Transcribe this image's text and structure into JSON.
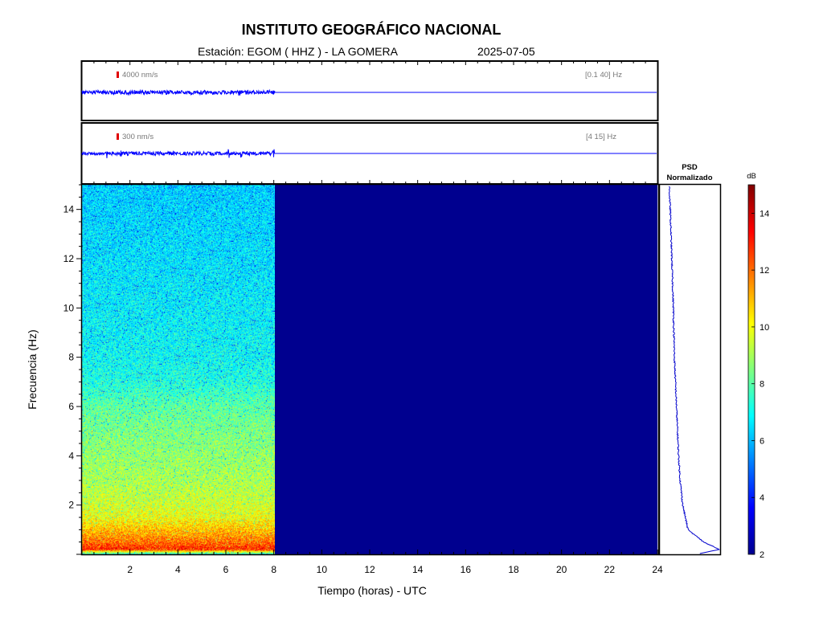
{
  "header": {
    "title": "INSTITUTO GEOGRÁFICO NACIONAL",
    "station": "Estación:  EGOM ( HHZ ) - LA GOMERA",
    "date": "2025-07-05"
  },
  "traces": [
    {
      "scale_label": "4000 nm/s",
      "band_label": "[0.1 40] Hz"
    },
    {
      "scale_label": "300 nm/s",
      "band_label": "[4 15] Hz"
    }
  ],
  "psd_panel": {
    "label_line1": "PSD",
    "label_line2": "Normalizado"
  },
  "colors": {
    "trace": "#0000ff",
    "empty_spectrogram": "#00008f",
    "scale_marker": "#e00000"
  },
  "chart_data": {
    "type": "heatmap",
    "xlabel": "Tiempo (horas) - UTC",
    "ylabel": "Frecuencia  (Hz)",
    "xlim": [
      0,
      24
    ],
    "ylim": [
      0,
      15
    ],
    "xticks": [
      2,
      4,
      6,
      8,
      10,
      12,
      14,
      16,
      18,
      20,
      22,
      24
    ],
    "yticks": [
      2,
      4,
      6,
      8,
      10,
      12,
      14
    ],
    "data_end_hour": 8.05,
    "colorbar": {
      "label": "dB",
      "range": [
        2,
        15
      ],
      "ticks": [
        2,
        4,
        6,
        8,
        10,
        12,
        14
      ],
      "colormap": "jet"
    },
    "spectrogram_db_by_frequency": {
      "frequency_hz": [
        0,
        0.2,
        0.5,
        1,
        1.5,
        2,
        3,
        4,
        5,
        6,
        7,
        8,
        10,
        12,
        14,
        15
      ],
      "level_db": [
        7,
        13,
        12,
        11,
        10,
        9.6,
        9.1,
        8.8,
        8.5,
        8.1,
        7.3,
        7,
        6.8,
        6.6,
        6.4,
        6.3
      ]
    },
    "psd_normalized": {
      "frequency_hz": [
        0,
        0.2,
        0.5,
        1,
        2,
        3,
        4,
        5,
        6,
        8,
        10,
        12,
        14,
        15
      ],
      "value": [
        0.55,
        1.0,
        0.7,
        0.4,
        0.3,
        0.25,
        0.22,
        0.2,
        0.18,
        0.14,
        0.12,
        0.09,
        0.06,
        0.04
      ]
    }
  }
}
